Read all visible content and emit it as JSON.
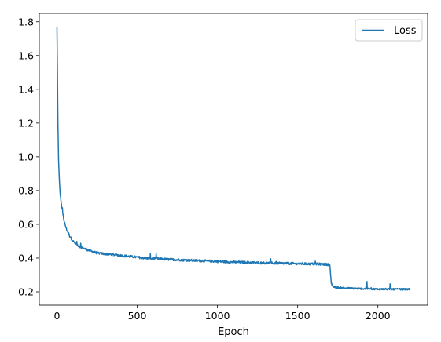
{
  "chart_data": {
    "type": "line",
    "title": "",
    "xlabel": "Epoch",
    "ylabel": "",
    "xlim": [
      -110,
      2310
    ],
    "ylim": [
      0.121,
      1.85
    ],
    "xticks": [
      0,
      500,
      1000,
      1500,
      2000
    ],
    "yticks": [
      0.2,
      0.4,
      0.6,
      0.8,
      1.0,
      1.2,
      1.4,
      1.6,
      1.8
    ],
    "ytick_labels": [
      "0.2",
      "0.4",
      "0.6",
      "0.8",
      "1.0",
      "1.2",
      "1.4",
      "1.6",
      "1.8"
    ],
    "grid": false,
    "legend": "top-right",
    "series": [
      {
        "name": "Loss",
        "color": "#1f77b4",
        "x": [
          0,
          3,
          6,
          10,
          15,
          20,
          30,
          40,
          50,
          60,
          80,
          100,
          130,
          160,
          200,
          250,
          300,
          350,
          400,
          450,
          500,
          550,
          600,
          650,
          700,
          750,
          800,
          850,
          900,
          950,
          1000,
          1050,
          1100,
          1150,
          1200,
          1250,
          1300,
          1350,
          1400,
          1450,
          1500,
          1550,
          1600,
          1650,
          1700,
          1705,
          1710,
          1720,
          1750,
          1800,
          1850,
          1900,
          1950,
          2000,
          2050,
          2100,
          2150,
          2200
        ],
        "y": [
          1.77,
          1.5,
          1.2,
          0.98,
          0.86,
          0.78,
          0.7,
          0.64,
          0.6,
          0.57,
          0.53,
          0.5,
          0.475,
          0.46,
          0.445,
          0.43,
          0.425,
          0.42,
          0.415,
          0.41,
          0.405,
          0.4,
          0.398,
          0.395,
          0.392,
          0.39,
          0.388,
          0.386,
          0.384,
          0.382,
          0.38,
          0.378,
          0.376,
          0.375,
          0.374,
          0.372,
          0.371,
          0.37,
          0.369,
          0.368,
          0.367,
          0.366,
          0.365,
          0.364,
          0.362,
          0.3,
          0.25,
          0.23,
          0.225,
          0.222,
          0.22,
          0.218,
          0.217,
          0.216,
          0.216,
          0.215,
          0.215,
          0.215
        ]
      }
    ]
  }
}
